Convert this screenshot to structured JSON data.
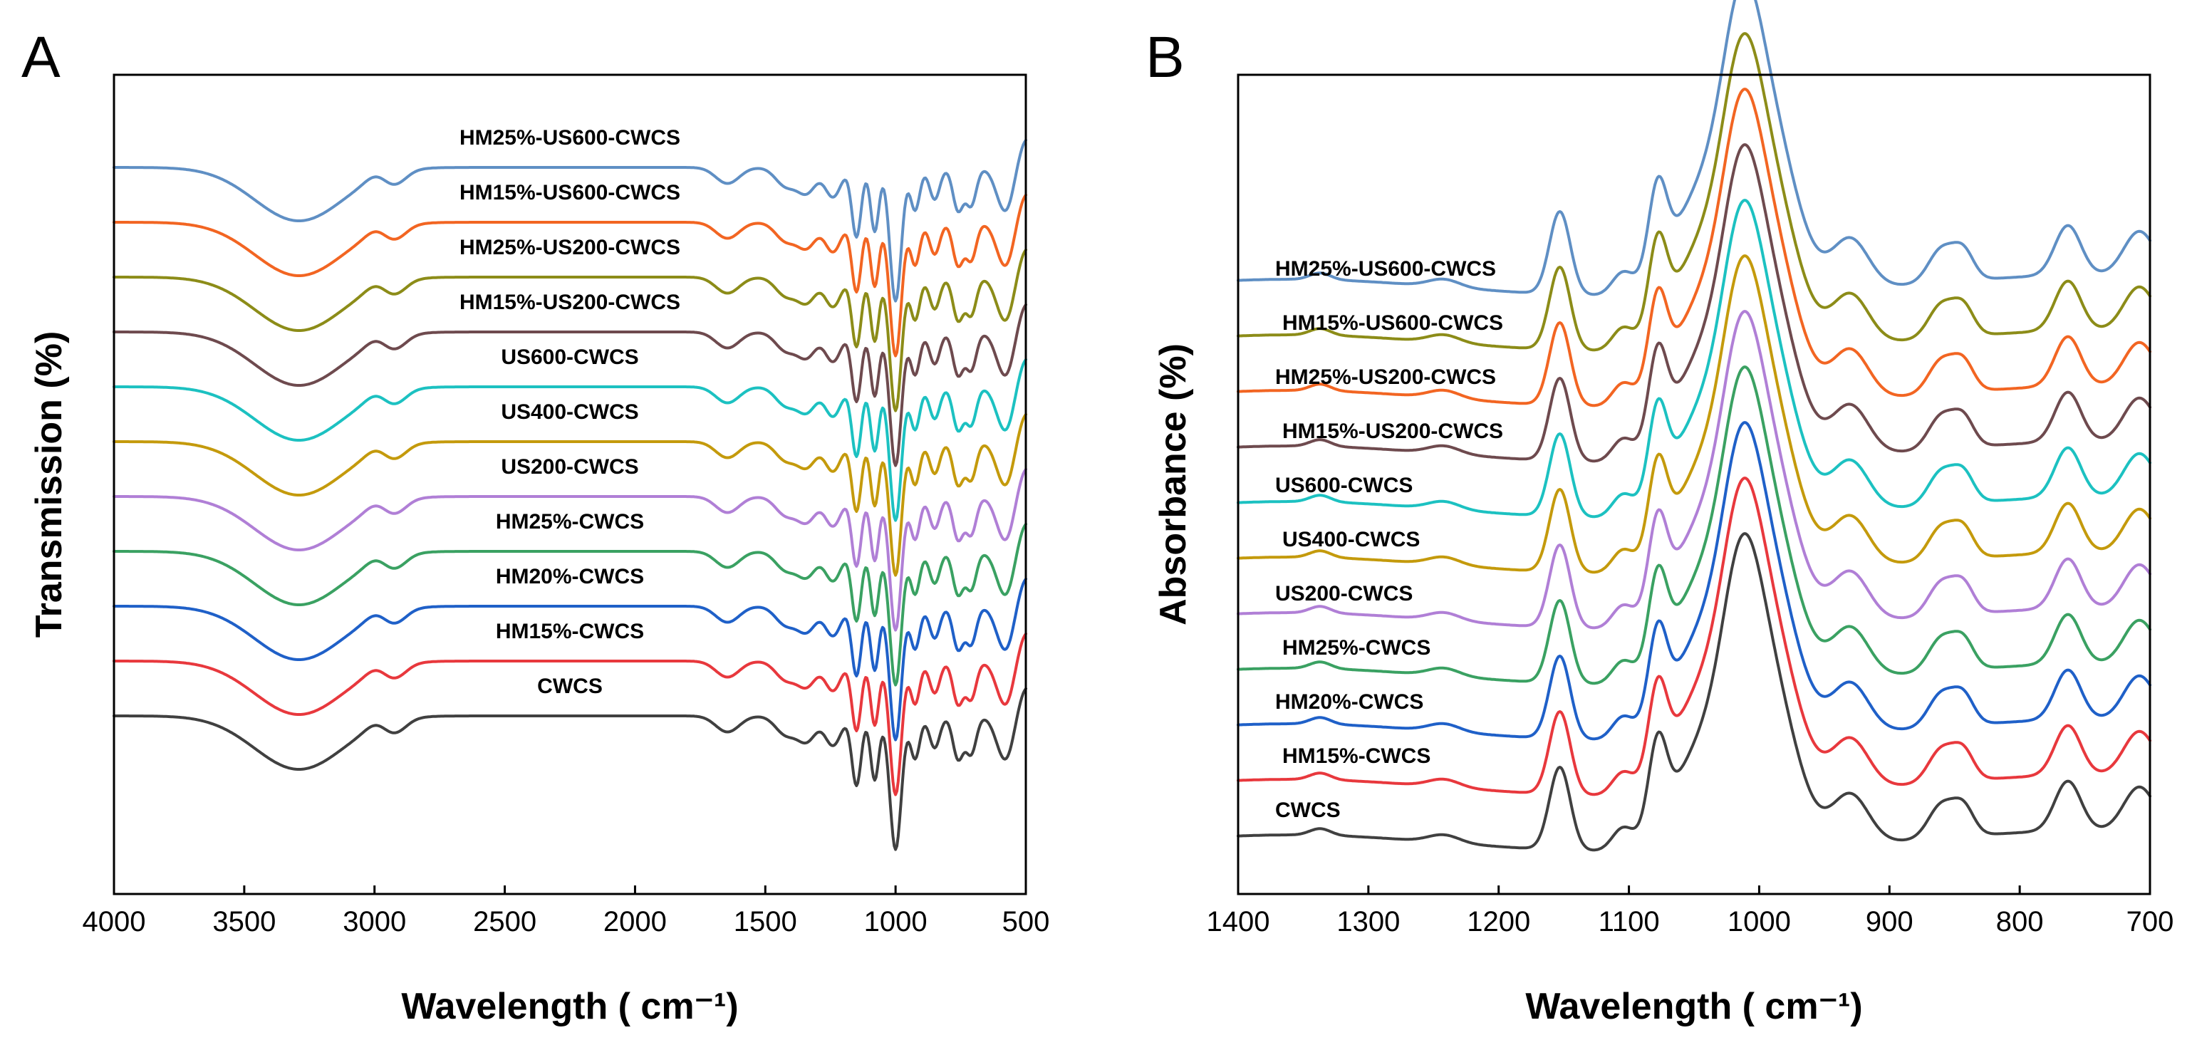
{
  "chart_data": [
    {
      "panel": "A",
      "type": "line",
      "title": "",
      "xlabel": "Wavelength ( cm⁻¹)",
      "ylabel": "Transmission (%)",
      "xlim": [
        4000,
        500
      ],
      "x_ticks": [
        4000,
        3500,
        3000,
        2500,
        2000,
        1500,
        1000,
        500
      ],
      "y_ticks_shown": false,
      "series": [
        {
          "name": "CWCS",
          "color": "#404040",
          "offset": 0
        },
        {
          "name": "HM15%-CWCS",
          "color": "#E8383D",
          "offset": 1
        },
        {
          "name": "HM20%-CWCS",
          "color": "#1F60C8",
          "offset": 2
        },
        {
          "name": "HM25%-CWCS",
          "color": "#3AA162",
          "offset": 3
        },
        {
          "name": "US200-CWCS",
          "color": "#B07FD6",
          "offset": 4
        },
        {
          "name": "US400-CWCS",
          "color": "#C49A0C",
          "offset": 5
        },
        {
          "name": "US600-CWCS",
          "color": "#1CC1C1",
          "offset": 6
        },
        {
          "name": "HM15%-US200-CWCS",
          "color": "#6E4A4E",
          "offset": 7
        },
        {
          "name": "HM25%-US200-CWCS",
          "color": "#8C8C18",
          "offset": 8
        },
        {
          "name": "HM15%-US600-CWCS",
          "color": "#F26522",
          "offset": 9
        },
        {
          "name": "HM25%-US600-CWCS",
          "color": "#5F8FC4",
          "offset": 10
        }
      ],
      "features": [
        {
          "type": "dip",
          "x": 3290,
          "depth": 1.0,
          "width": 170
        },
        {
          "type": "bump",
          "x": 2990,
          "depth": 0.12,
          "width": 40
        },
        {
          "type": "dip",
          "x": 2925,
          "depth": 0.25,
          "width": 45
        },
        {
          "type": "dip",
          "x": 1645,
          "depth": 0.3,
          "width": 45
        },
        {
          "type": "dip",
          "x": 1420,
          "depth": 0.35,
          "width": 40
        },
        {
          "type": "dip",
          "x": 1340,
          "depth": 0.45,
          "width": 35
        },
        {
          "type": "dip",
          "x": 1240,
          "depth": 0.55,
          "width": 30
        },
        {
          "type": "dip",
          "x": 1150,
          "depth": 1.3,
          "width": 18
        },
        {
          "type": "dip",
          "x": 1080,
          "depth": 1.2,
          "width": 16
        },
        {
          "type": "dip",
          "x": 1000,
          "depth": 2.5,
          "width": 22
        },
        {
          "type": "dip",
          "x": 925,
          "depth": 0.8,
          "width": 18
        },
        {
          "type": "dip",
          "x": 850,
          "depth": 0.6,
          "width": 20
        },
        {
          "type": "dip",
          "x": 760,
          "depth": 0.8,
          "width": 20
        },
        {
          "type": "dip",
          "x": 710,
          "depth": 0.7,
          "width": 20
        },
        {
          "type": "dip",
          "x": 575,
          "depth": 0.9,
          "width": 35
        }
      ]
    },
    {
      "panel": "B",
      "type": "line",
      "title": "",
      "xlabel": "Wavelength ( cm⁻¹)",
      "ylabel": "Absorbance (%)",
      "xlim": [
        1400,
        700
      ],
      "x_ticks": [
        1400,
        1300,
        1200,
        1100,
        1000,
        900,
        800,
        700
      ],
      "y_ticks_shown": false,
      "series": [
        {
          "name": "CWCS",
          "color": "#404040",
          "offset": 0
        },
        {
          "name": "HM15%-CWCS",
          "color": "#E8383D",
          "offset": 1
        },
        {
          "name": "HM20%-CWCS",
          "color": "#1F60C8",
          "offset": 2
        },
        {
          "name": "HM25%-CWCS",
          "color": "#3AA162",
          "offset": 3
        },
        {
          "name": "US200-CWCS",
          "color": "#B07FD6",
          "offset": 4
        },
        {
          "name": "US400-CWCS",
          "color": "#C49A0C",
          "offset": 5
        },
        {
          "name": "US600-CWCS",
          "color": "#1CC1C1",
          "offset": 6
        },
        {
          "name": "HM15%-US200-CWCS",
          "color": "#6E4A4E",
          "offset": 7
        },
        {
          "name": "HM25%-US200-CWCS",
          "color": "#F26522",
          "offset": 8
        },
        {
          "name": "HM15%-US600-CWCS",
          "color": "#8C8C18",
          "offset": 9
        },
        {
          "name": "HM25%-US600-CWCS",
          "color": "#5F8FC4",
          "offset": 10
        }
      ],
      "features": [
        {
          "type": "peak",
          "x": 1337,
          "height": 0.06,
          "width": 8
        },
        {
          "type": "peak",
          "x": 1242,
          "height": 0.07,
          "width": 12
        },
        {
          "type": "peak",
          "x": 1153,
          "height": 0.75,
          "width": 8
        },
        {
          "type": "peak",
          "x": 1105,
          "height": 0.18,
          "width": 8
        },
        {
          "type": "peak",
          "x": 1078,
          "height": 0.75,
          "width": 7
        },
        {
          "type": "peak",
          "x": 1040,
          "height": 0.95,
          "width": 26
        },
        {
          "type": "peak",
          "x": 1014,
          "height": 1.2,
          "width": 14
        },
        {
          "type": "peak",
          "x": 995,
          "height": 1.55,
          "width": 22
        },
        {
          "type": "peak",
          "x": 930,
          "height": 0.45,
          "width": 14
        },
        {
          "type": "peak",
          "x": 860,
          "height": 0.3,
          "width": 10
        },
        {
          "type": "peak",
          "x": 843,
          "height": 0.25,
          "width": 8
        },
        {
          "type": "peak",
          "x": 763,
          "height": 0.45,
          "width": 10
        },
        {
          "type": "peak",
          "x": 708,
          "height": 0.4,
          "width": 12
        }
      ]
    }
  ]
}
